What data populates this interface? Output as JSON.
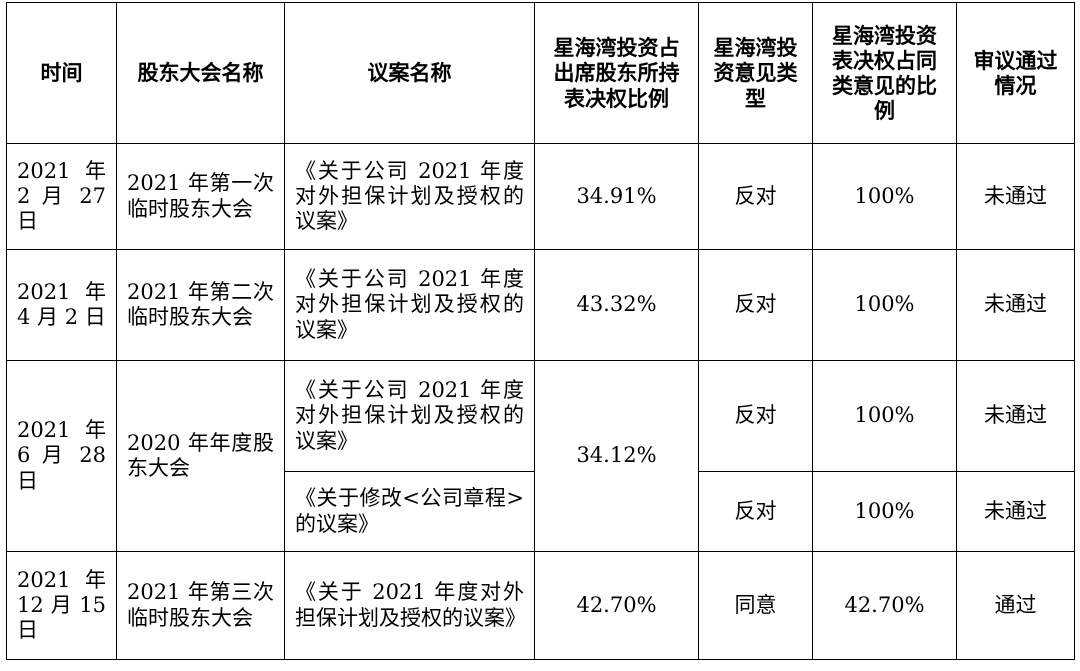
{
  "headers": {
    "time": "时间",
    "meeting": "股东大会名称",
    "proposal": "议案名称",
    "ratio": "星海湾投资占出席股东所持表决权比例",
    "opinion": "星海湾投资意见类型",
    "same_ratio": "星海湾投资表决权占同类意见的比例",
    "result": "审议通过情况"
  },
  "rows": [
    {
      "time": "2021 年 2 月 27 日",
      "meeting": "2021 年第一次临时股东大会",
      "proposal": "《关于公司 2021 年度对外担保计划及授权的议案》",
      "ratio": "34.91%",
      "opinion": "反对",
      "same_ratio": "100%",
      "result": "未通过"
    },
    {
      "time": "2021 年 4 月 2 日",
      "meeting": "2021 年第二次临时股东大会",
      "proposal": "《关于公司 2021 年度对外担保计划及授权的议案》",
      "ratio": "43.32%",
      "opinion": "反对",
      "same_ratio": "100%",
      "result": "未通过"
    },
    {
      "time": "2021 年 6 月 28 日",
      "meeting": "2020 年年度股东大会",
      "proposal": "《关于公司 2021 年度对外担保计划及授权的议案》",
      "ratio": "34.12%",
      "opinion": "反对",
      "same_ratio": "100%",
      "result": "未通过",
      "proposal_b": "《关于修改<公司章程>的议案》",
      "opinion_b": "反对",
      "same_ratio_b": "100%",
      "result_b": "未通过"
    },
    {
      "time": "2021 年 12 月 15 日",
      "meeting": "2021 年第三次临时股东大会",
      "proposal": "《关于 2021 年度对外担保计划及授权的议案》",
      "ratio": "42.70%",
      "opinion": "同意",
      "same_ratio": "42.70%",
      "result": "通过"
    }
  ]
}
